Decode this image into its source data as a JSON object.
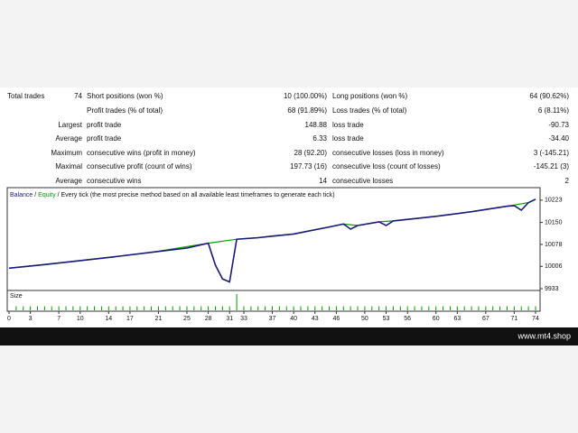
{
  "table": {
    "rows": [
      {
        "label": "Total trades",
        "value": "74",
        "mid_label": "Short positions (won %)",
        "mid_value": "10 (100.00%)",
        "right_label": "Long positions (won %)",
        "right_value": "64 (90.62%)"
      },
      {
        "mid_label": "Profit trades (% of total)",
        "mid_value": "68 (91.89%)",
        "right_label": "Loss trades (% of total)",
        "right_value": "6 (8.11%)"
      },
      {
        "label": "Largest",
        "mid_label": "profit trade",
        "mid_value": "148.88",
        "right_label": "loss trade",
        "right_value": "-90.73"
      },
      {
        "label": "Average",
        "mid_label": "profit trade",
        "mid_value": "6.33",
        "right_label": "loss trade",
        "right_value": "-34.40"
      },
      {
        "label": "Maximum",
        "mid_label": "consecutive wins (profit in money)",
        "mid_value": "28 (92.20)",
        "right_label": "consecutive losses (loss in money)",
        "right_value": "3 (-145.21)"
      },
      {
        "label": "Maximal",
        "mid_label": "consecutive profit (count of wins)",
        "mid_value": "197.73 (16)",
        "right_label": "consecutive loss (count of losses)",
        "right_value": "-145.21 (3)"
      },
      {
        "label": "Average",
        "mid_label": "consecutive wins",
        "mid_value": "14",
        "right_label": "consecutive losses",
        "right_value": "2"
      }
    ]
  },
  "chart_data": {
    "type": "line",
    "legend_separator": "/",
    "legend_note": "Every tick (the most precise method based on all available least timeframes to generate each tick)",
    "series": [
      {
        "name": "Equity",
        "color": "#00a000",
        "x": [
          0,
          10,
          20,
          28,
          32,
          35,
          37,
          40,
          45,
          47,
          49,
          52,
          54,
          60,
          65,
          70,
          71,
          73,
          74
        ],
        "values": [
          10000,
          10025,
          10052,
          10082,
          10095,
          10100,
          10106,
          10112,
          10135,
          10145,
          10140,
          10152,
          10155,
          10170,
          10185,
          10203,
          10207,
          10215,
          10226
        ]
      },
      {
        "name": "Balance",
        "color": "#1a1a7a",
        "x": [
          0,
          5,
          10,
          15,
          20,
          25,
          28,
          29,
          30,
          31,
          32,
          35,
          40,
          45,
          47,
          48,
          49,
          52,
          53,
          54,
          60,
          65,
          70,
          71,
          72,
          73,
          74
        ],
        "values": [
          10000,
          10012,
          10025,
          10038,
          10052,
          10066,
          10082,
          10010,
          9965,
          9955,
          10095,
          10100,
          10112,
          10135,
          10145,
          10128,
          10140,
          10152,
          10140,
          10155,
          10170,
          10185,
          10203,
          10205,
          10190,
          10215,
          10226
        ]
      }
    ],
    "ylim": [
      9930,
      10264
    ],
    "yticks": [
      9933,
      10006,
      10078,
      10150,
      10223
    ],
    "xlim": [
      0,
      74
    ],
    "xticks": [
      0,
      3,
      7,
      10,
      14,
      17,
      21,
      25,
      28,
      31,
      33,
      37,
      40,
      43,
      46,
      50,
      53,
      56,
      60,
      63,
      67,
      71,
      74
    ],
    "size_panel": {
      "label": "Size",
      "color": "#00a000",
      "x": [
        1,
        2,
        3,
        4,
        5,
        6,
        7,
        8,
        9,
        10,
        11,
        12,
        13,
        14,
        15,
        16,
        17,
        18,
        19,
        20,
        21,
        22,
        23,
        24,
        25,
        26,
        27,
        28,
        29,
        30,
        31,
        32,
        33,
        34,
        35,
        36,
        37,
        38,
        39,
        40,
        41,
        42,
        43,
        44,
        45,
        46,
        47,
        48,
        49,
        50,
        51,
        52,
        53,
        54,
        55,
        56,
        57,
        58,
        59,
        60,
        61,
        62,
        63,
        64,
        65,
        66,
        67,
        68,
        69,
        70,
        71,
        72,
        73,
        74
      ],
      "values": [
        1,
        1,
        1,
        1,
        1,
        1,
        1,
        1,
        1,
        1,
        1,
        1,
        1,
        1,
        1,
        1,
        1,
        1,
        1,
        1,
        1,
        1,
        1,
        1,
        1,
        1,
        1,
        1,
        1,
        1,
        1,
        4,
        1,
        1,
        1,
        1,
        1,
        1,
        1,
        1,
        1,
        1,
        1,
        1,
        1,
        1,
        1,
        1,
        1,
        1,
        1,
        1,
        1,
        1,
        1,
        1,
        1,
        1,
        1,
        1,
        1,
        1,
        1,
        1,
        1,
        1,
        1,
        1,
        1,
        1,
        1,
        1,
        1,
        1
      ]
    }
  },
  "footer": {
    "site": "www.mt4.shop"
  }
}
